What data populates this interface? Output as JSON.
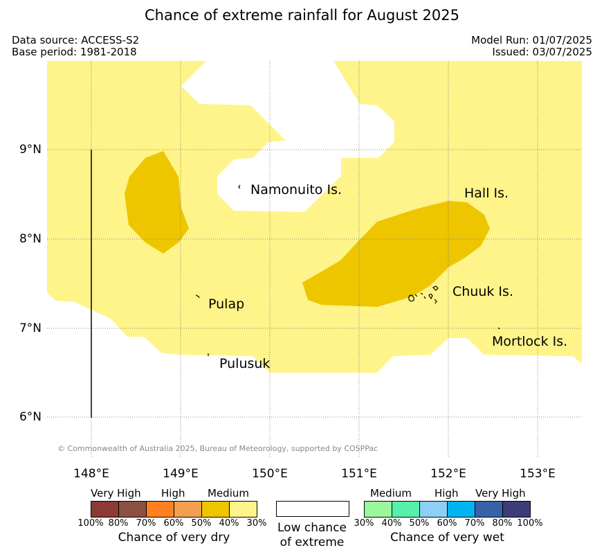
{
  "title": "Chance of extreme rainfall for August 2025",
  "meta": {
    "data_source": "Data source: ACCESS-S2",
    "base_period": "Base period: 1981-2018",
    "model_run": "Model Run: 01/07/2025",
    "issued": "Issued: 03/07/2025"
  },
  "axes": {
    "lat_labels": [
      "9°N",
      "8°N",
      "7°N",
      "6°N"
    ],
    "lon_labels": [
      "148°E",
      "149°E",
      "150°E",
      "151°E",
      "152°E",
      "153°E"
    ]
  },
  "places": {
    "namonuito": "Namonuito Is.",
    "hall": "Hall Is.",
    "chuuk": "Chuuk Is.",
    "pulap": "Pulap",
    "pulusuk": "Pulusuk",
    "mortlock": "Mortlock Is."
  },
  "copyright": "© Commonwealth of Australia 2025, Bureau of Meteorology, supported by COSPPac",
  "legend": {
    "dry": {
      "levels": [
        "Very High",
        "High",
        "Medium"
      ],
      "colors": [
        "#8b3a35",
        "#8b5040",
        "#ff8020",
        "#f0a050",
        "#edc600",
        "#fef48a"
      ],
      "ticks": [
        "100%",
        "80%",
        "70%",
        "60%",
        "50%",
        "40%",
        "30%"
      ],
      "caption": "Chance of very dry"
    },
    "low": {
      "caption_line1": "Low chance",
      "caption_line2": "of extreme",
      "color": "#ffffff"
    },
    "wet": {
      "levels": [
        "Medium",
        "High",
        "Very High"
      ],
      "colors": [
        "#9cf79c",
        "#58f0a8",
        "#8ccff7",
        "#00b4ef",
        "#3861a8",
        "#3c3c78"
      ],
      "ticks": [
        "30%",
        "40%",
        "50%",
        "60%",
        "70%",
        "80%",
        "100%"
      ],
      "caption": "Chance of very wet"
    }
  },
  "map_colors": {
    "dry_30_40": "#fef48a",
    "dry_40_50": "#edc600",
    "low": "#ffffff"
  }
}
